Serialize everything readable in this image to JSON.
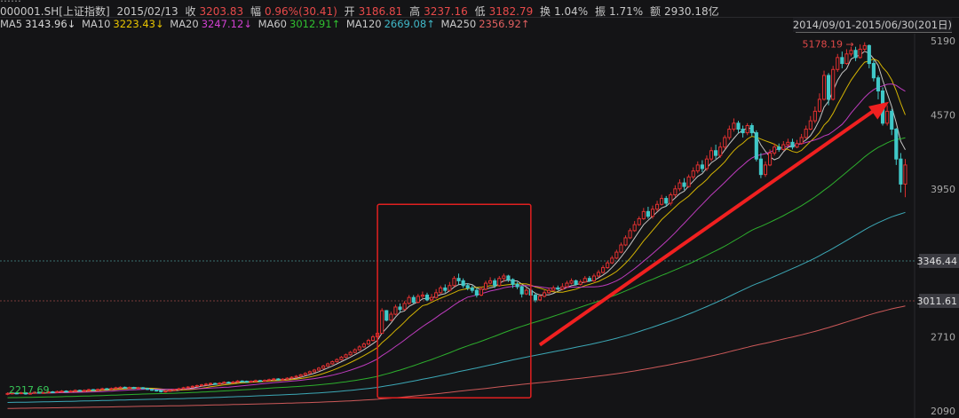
{
  "header": {
    "top_partial": "……",
    "code": "000001.SH[上证指数]",
    "date": "2015/02/13",
    "close_label": "收",
    "close": "3203.83",
    "change_label": "幅",
    "change": "0.96%(30.41)",
    "open_label": "开",
    "open": "3186.81",
    "high_label": "高",
    "high": "3237.16",
    "low_label": "低",
    "low": "3182.79",
    "turnover_label": "换",
    "turnover": "1.04%",
    "amp_label": "振",
    "amp": "1.71%",
    "amount_label": "额",
    "amount": "2930.18亿",
    "range": "2014/09/01-2015/06/30(201日)"
  },
  "ma": [
    {
      "label": "MA5",
      "value": "3143.96↓",
      "color": "#d8d8d8"
    },
    {
      "label": "MA10",
      "value": "3223.43↓",
      "color": "#e8c400"
    },
    {
      "label": "MA20",
      "value": "3247.12↓",
      "color": "#d040d0"
    },
    {
      "label": "MA60",
      "value": "3012.91↑",
      "color": "#30c030"
    },
    {
      "label": "MA120",
      "value": "2669.08↑",
      "color": "#40b8c8"
    },
    {
      "label": "MA250",
      "value": "2356.92↑",
      "color": "#e06060"
    }
  ],
  "colors": {
    "up": "#e03030",
    "down": "#40c8c8",
    "arrow": "#f02020",
    "box": "#e02020"
  },
  "chart_data": {
    "type": "candlestick",
    "period": "2014/09/01-2015/06/30",
    "ylim": [
      2090,
      5190
    ],
    "y_axis_labels": [
      "5190",
      "4570",
      "3950",
      "2710",
      "2090"
    ],
    "reference_lines": [
      {
        "label": "3346.44",
        "value": 3346.44
      },
      {
        "label": "3011.61",
        "value": 3011.61
      }
    ],
    "annotations": [
      {
        "text": "5178.19",
        "kind": "high_marker"
      },
      {
        "text": "2217.69",
        "kind": "low_marker"
      }
    ],
    "highlight_box_index_range": [
      83,
      115
    ],
    "arrow_index_range": [
      117,
      196
    ],
    "candles": [
      [
        2230,
        2236,
        2245,
        2222
      ],
      [
        2236,
        2240,
        2248,
        2228
      ],
      [
        2240,
        2236,
        2246,
        2230
      ],
      [
        2236,
        2242,
        2250,
        2230
      ],
      [
        2242,
        2232,
        2248,
        2226
      ],
      [
        2232,
        2238,
        2244,
        2226
      ],
      [
        2238,
        2246,
        2254,
        2232
      ],
      [
        2246,
        2240,
        2252,
        2234
      ],
      [
        2240,
        2244,
        2250,
        2234
      ],
      [
        2244,
        2250,
        2258,
        2238
      ],
      [
        2250,
        2246,
        2256,
        2240
      ],
      [
        2246,
        2252,
        2260,
        2240
      ],
      [
        2252,
        2256,
        2264,
        2246
      ],
      [
        2256,
        2250,
        2262,
        2244
      ],
      [
        2250,
        2256,
        2264,
        2244
      ],
      [
        2256,
        2262,
        2270,
        2250
      ],
      [
        2262,
        2258,
        2268,
        2252
      ],
      [
        2258,
        2262,
        2270,
        2252
      ],
      [
        2262,
        2268,
        2276,
        2256
      ],
      [
        2268,
        2264,
        2274,
        2258
      ],
      [
        2264,
        2270,
        2278,
        2258
      ],
      [
        2270,
        2276,
        2284,
        2264
      ],
      [
        2276,
        2272,
        2282,
        2266
      ],
      [
        2272,
        2278,
        2286,
        2266
      ],
      [
        2278,
        2284,
        2292,
        2272
      ],
      [
        2284,
        2288,
        2296,
        2278
      ],
      [
        2288,
        2282,
        2294,
        2276
      ],
      [
        2282,
        2286,
        2294,
        2276
      ],
      [
        2286,
        2280,
        2292,
        2274
      ],
      [
        2280,
        2284,
        2292,
        2274
      ],
      [
        2284,
        2278,
        2290,
        2272
      ],
      [
        2278,
        2270,
        2284,
        2264
      ],
      [
        2270,
        2264,
        2276,
        2258
      ],
      [
        2264,
        2258,
        2270,
        2252
      ],
      [
        2258,
        2250,
        2264,
        2244
      ],
      [
        2250,
        2256,
        2262,
        2244
      ],
      [
        2256,
        2262,
        2270,
        2250
      ],
      [
        2262,
        2268,
        2276,
        2256
      ],
      [
        2268,
        2276,
        2284,
        2262
      ],
      [
        2276,
        2284,
        2292,
        2270
      ],
      [
        2284,
        2290,
        2298,
        2278
      ],
      [
        2290,
        2296,
        2304,
        2284
      ],
      [
        2296,
        2302,
        2310,
        2290
      ],
      [
        2302,
        2308,
        2316,
        2296
      ],
      [
        2308,
        2314,
        2324,
        2302
      ],
      [
        2314,
        2320,
        2328,
        2308
      ],
      [
        2320,
        2316,
        2326,
        2310
      ],
      [
        2316,
        2322,
        2330,
        2310
      ],
      [
        2322,
        2330,
        2338,
        2316
      ],
      [
        2330,
        2326,
        2336,
        2320
      ],
      [
        2326,
        2332,
        2340,
        2320
      ],
      [
        2332,
        2340,
        2348,
        2326
      ],
      [
        2340,
        2338,
        2346,
        2332
      ],
      [
        2338,
        2332,
        2344,
        2326
      ],
      [
        2332,
        2338,
        2346,
        2326
      ],
      [
        2338,
        2344,
        2352,
        2332
      ],
      [
        2344,
        2340,
        2350,
        2334
      ],
      [
        2340,
        2346,
        2354,
        2334
      ],
      [
        2346,
        2352,
        2360,
        2340
      ],
      [
        2352,
        2358,
        2366,
        2346
      ],
      [
        2358,
        2350,
        2364,
        2344
      ],
      [
        2350,
        2356,
        2364,
        2344
      ],
      [
        2356,
        2364,
        2372,
        2350
      ],
      [
        2364,
        2372,
        2380,
        2358
      ],
      [
        2372,
        2380,
        2390,
        2366
      ],
      [
        2380,
        2392,
        2400,
        2374
      ],
      [
        2392,
        2404,
        2414,
        2386
      ],
      [
        2404,
        2418,
        2428,
        2398
      ],
      [
        2418,
        2432,
        2442,
        2412
      ],
      [
        2432,
        2448,
        2458,
        2426
      ],
      [
        2448,
        2466,
        2476,
        2440
      ],
      [
        2466,
        2484,
        2494,
        2458
      ],
      [
        2484,
        2502,
        2512,
        2476
      ],
      [
        2502,
        2520,
        2530,
        2494
      ],
      [
        2520,
        2540,
        2550,
        2512
      ],
      [
        2540,
        2560,
        2570,
        2532
      ],
      [
        2560,
        2580,
        2592,
        2552
      ],
      [
        2580,
        2602,
        2614,
        2572
      ],
      [
        2602,
        2626,
        2640,
        2594
      ],
      [
        2626,
        2650,
        2664,
        2618
      ],
      [
        2650,
        2680,
        2694,
        2642
      ],
      [
        2680,
        2710,
        2726,
        2672
      ],
      [
        2710,
        2740,
        2756,
        2700
      ],
      [
        2740,
        2930,
        2950,
        2735
      ],
      [
        2930,
        2850,
        2935,
        2840
      ],
      [
        2850,
        2900,
        2920,
        2840
      ],
      [
        2900,
        2960,
        2980,
        2890
      ],
      [
        2960,
        2940,
        2990,
        2920
      ],
      [
        2940,
        2990,
        3010,
        2930
      ],
      [
        2990,
        3040,
        3060,
        2980
      ],
      [
        3040,
        3000,
        3060,
        2990
      ],
      [
        3000,
        3050,
        3070,
        2990
      ],
      [
        3050,
        3060,
        3090,
        3030
      ],
      [
        3060,
        3020,
        3080,
        3010
      ],
      [
        3020,
        3040,
        3070,
        3010
      ],
      [
        3040,
        3080,
        3110,
        3030
      ],
      [
        3080,
        3120,
        3140,
        3070
      ],
      [
        3120,
        3100,
        3150,
        3080
      ],
      [
        3100,
        3140,
        3170,
        3090
      ],
      [
        3140,
        3200,
        3220,
        3130
      ],
      [
        3200,
        3180,
        3240,
        3150
      ],
      [
        3180,
        3140,
        3200,
        3120
      ],
      [
        3140,
        3120,
        3160,
        3100
      ],
      [
        3120,
        3100,
        3140,
        3080
      ],
      [
        3100,
        3060,
        3120,
        3040
      ],
      [
        3060,
        3110,
        3130,
        3050
      ],
      [
        3110,
        3160,
        3180,
        3100
      ],
      [
        3160,
        3180,
        3210,
        3150
      ],
      [
        3180,
        3140,
        3200,
        3120
      ],
      [
        3140,
        3200,
        3220,
        3130
      ],
      [
        3200,
        3220,
        3240,
        3170
      ],
      [
        3220,
        3190,
        3230,
        3170
      ],
      [
        3190,
        3150,
        3200,
        3120
      ],
      [
        3150,
        3130,
        3170,
        3110
      ],
      [
        3130,
        3070,
        3140,
        3040
      ],
      [
        3070,
        3100,
        3120,
        3060
      ],
      [
        3100,
        3060,
        3110,
        2980
      ],
      [
        3060,
        3020,
        3080,
        3000
      ],
      [
        3020,
        3050,
        3070,
        3010
      ],
      [
        3050,
        3080,
        3100,
        3040
      ],
      [
        3080,
        3100,
        3120,
        3070
      ],
      [
        3100,
        3120,
        3140,
        3090
      ],
      [
        3120,
        3110,
        3140,
        3100
      ],
      [
        3110,
        3130,
        3160,
        3100
      ],
      [
        3130,
        3160,
        3180,
        3120
      ],
      [
        3160,
        3180,
        3200,
        3150
      ],
      [
        3180,
        3150,
        3190,
        3140
      ],
      [
        3150,
        3170,
        3190,
        3140
      ],
      [
        3170,
        3200,
        3220,
        3160
      ],
      [
        3200,
        3180,
        3220,
        3170
      ],
      [
        3180,
        3220,
        3240,
        3170
      ],
      [
        3220,
        3250,
        3270,
        3210
      ],
      [
        3250,
        3290,
        3310,
        3240
      ],
      [
        3290,
        3330,
        3350,
        3280
      ],
      [
        3330,
        3370,
        3390,
        3320
      ],
      [
        3370,
        3420,
        3440,
        3360
      ],
      [
        3420,
        3480,
        3500,
        3410
      ],
      [
        3480,
        3540,
        3560,
        3470
      ],
      [
        3540,
        3600,
        3620,
        3530
      ],
      [
        3600,
        3650,
        3680,
        3590
      ],
      [
        3650,
        3700,
        3720,
        3640
      ],
      [
        3700,
        3760,
        3790,
        3690
      ],
      [
        3760,
        3720,
        3800,
        3700
      ],
      [
        3720,
        3780,
        3810,
        3700
      ],
      [
        3780,
        3820,
        3850,
        3760
      ],
      [
        3820,
        3870,
        3900,
        3810
      ],
      [
        3870,
        3830,
        3890,
        3800
      ],
      [
        3830,
        3900,
        3920,
        3810
      ],
      [
        3900,
        3950,
        3980,
        3880
      ],
      [
        3950,
        4000,
        4030,
        3930
      ],
      [
        4000,
        3970,
        4040,
        3940
      ],
      [
        3970,
        4050,
        4070,
        3960
      ],
      [
        4050,
        4100,
        4130,
        4030
      ],
      [
        4100,
        4150,
        4180,
        4080
      ],
      [
        4150,
        4120,
        4190,
        4090
      ],
      [
        4120,
        4200,
        4230,
        4100
      ],
      [
        4200,
        4270,
        4300,
        4180
      ],
      [
        4270,
        4230,
        4320,
        4200
      ],
      [
        4230,
        4300,
        4340,
        4210
      ],
      [
        4300,
        4380,
        4400,
        4280
      ],
      [
        4380,
        4450,
        4480,
        4360
      ],
      [
        4450,
        4500,
        4540,
        4430
      ],
      [
        4500,
        4450,
        4520,
        4420
      ],
      [
        4450,
        4420,
        4480,
        4380
      ],
      [
        4420,
        4480,
        4500,
        4400
      ],
      [
        4480,
        4420,
        4500,
        4390
      ],
      [
        4420,
        4200,
        4440,
        4180
      ],
      [
        4200,
        4070,
        4250,
        4040
      ],
      [
        4070,
        4150,
        4180,
        4050
      ],
      [
        4150,
        4250,
        4280,
        4140
      ],
      [
        4250,
        4300,
        4330,
        4230
      ],
      [
        4300,
        4280,
        4330,
        4260
      ],
      [
        4280,
        4320,
        4350,
        4270
      ],
      [
        4320,
        4340,
        4370,
        4300
      ],
      [
        4340,
        4300,
        4370,
        4280
      ],
      [
        4300,
        4330,
        4360,
        4290
      ],
      [
        4330,
        4380,
        4410,
        4320
      ],
      [
        4380,
        4450,
        4480,
        4370
      ],
      [
        4450,
        4520,
        4560,
        4440
      ],
      [
        4520,
        4600,
        4640,
        4500
      ],
      [
        4600,
        4700,
        4750,
        4590
      ],
      [
        4700,
        4900,
        4940,
        4690
      ],
      [
        4900,
        4700,
        4920,
        4650
      ],
      [
        4700,
        4950,
        4980,
        4690
      ],
      [
        4950,
        5050,
        5080,
        4930
      ],
      [
        5050,
        5000,
        5100,
        4960
      ],
      [
        5000,
        5080,
        5120,
        4990
      ],
      [
        5080,
        5110,
        5140,
        5060
      ],
      [
        5110,
        5050,
        5140,
        5020
      ],
      [
        5050,
        5120,
        5160,
        5040
      ],
      [
        5120,
        5150,
        5178,
        5100
      ],
      [
        5150,
        5000,
        5160,
        4960
      ],
      [
        5000,
        4880,
        5030,
        4850
      ],
      [
        4880,
        4770,
        4900,
        4700
      ],
      [
        4770,
        4500,
        4800,
        4480
      ],
      [
        4500,
        4600,
        4650,
        4480
      ],
      [
        4600,
        4450,
        4620,
        4400
      ],
      [
        4450,
        4200,
        4460,
        4150
      ],
      [
        4200,
        3990,
        4250,
        3920
      ],
      [
        3990,
        4150,
        4200,
        3880
      ]
    ]
  }
}
